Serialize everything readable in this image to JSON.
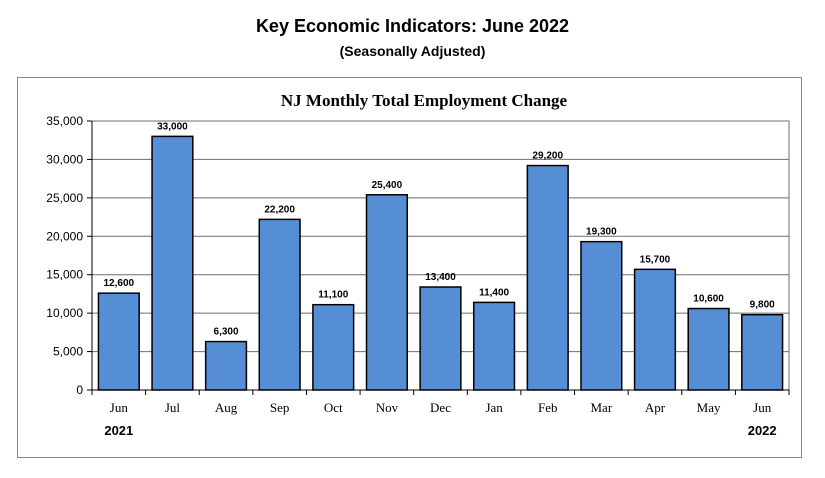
{
  "header": {
    "title": "Key Economic Indicators: June 2022",
    "subtitle": "(Seasonally Adjusted)"
  },
  "colors": {
    "bar_fill": "#558ed5",
    "bar_stroke": "#000000"
  },
  "chart_data": {
    "type": "bar",
    "title": "NJ Monthly Total Employment Change",
    "xlabel": "",
    "ylabel": "",
    "categories": [
      "Jun",
      "Jul",
      "Aug",
      "Sep",
      "Oct",
      "Nov",
      "Dec",
      "Jan",
      "Feb",
      "Mar",
      "Apr",
      "May",
      "Jun"
    ],
    "values": [
      12600,
      33000,
      6300,
      22200,
      11100,
      25400,
      13400,
      11400,
      29200,
      19300,
      15700,
      10600,
      9800
    ],
    "data_labels": [
      "12,600",
      "33,000",
      "6,300",
      "22,200",
      "11,100",
      "25,400",
      "13,400",
      "11,400",
      "29,200",
      "19,300",
      "15,700",
      "10,600",
      "9,800"
    ],
    "ylim": [
      0,
      35000
    ],
    "yticks": [
      0,
      5000,
      10000,
      15000,
      20000,
      25000,
      30000,
      35000
    ],
    "ytick_labels": [
      "0",
      "5,000",
      "10,000",
      "15,000",
      "20,000",
      "25,000",
      "30,000",
      "35,000"
    ],
    "year_labels": [
      {
        "text": "2021",
        "category_index": 0
      },
      {
        "text": "2022",
        "category_index": 12
      }
    ],
    "grid": true,
    "legend": "none"
  }
}
